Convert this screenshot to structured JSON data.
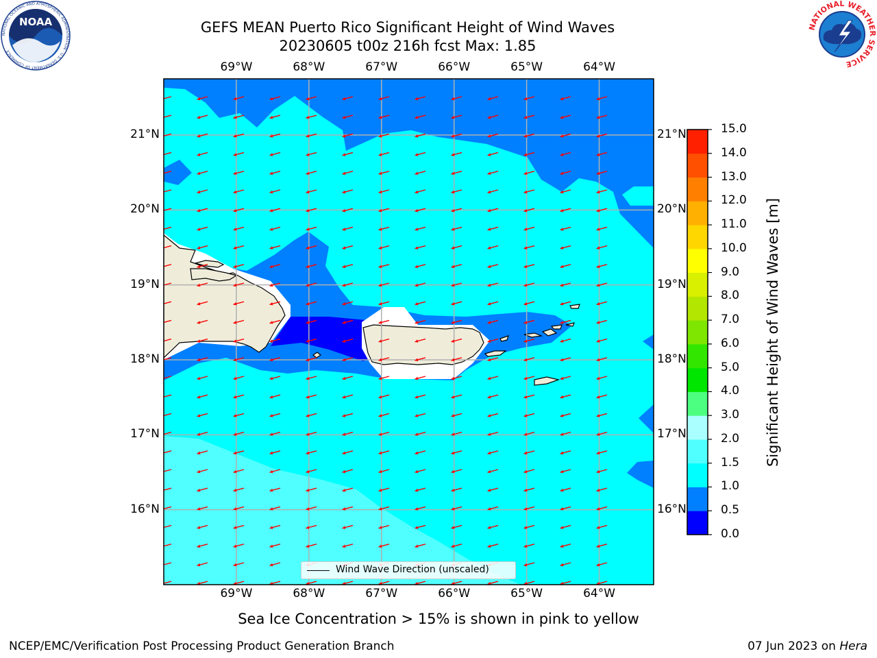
{
  "header": {
    "title_line1": "GEFS MEAN Puerto Rico Significant Height of Wind Waves",
    "title_line2": "20230605 t00z 216h fcst   Max: 1.85"
  },
  "logos": {
    "noaa_text": "NOAA",
    "noaa_ring_text": "NATIONAL OCEANIC AND ATMOSPHERIC ADMINISTRATION · U.S. DEPARTMENT OF COMMERCE",
    "nws_ring_text": "NATIONAL WEATHER SERVICE"
  },
  "map": {
    "lon_labels": [
      "69°W",
      "68°W",
      "67°W",
      "66°W",
      "65°W",
      "64°W"
    ],
    "lat_labels": [
      "21°N",
      "20°N",
      "19°N",
      "18°N",
      "17°N",
      "16°N"
    ],
    "lon_values": [
      -69,
      -68,
      -67,
      -66,
      -65,
      -64
    ],
    "lat_values": [
      21,
      20,
      19,
      18,
      17,
      16
    ],
    "extent": {
      "lon_min": -70.0,
      "lon_max": -63.25,
      "lat_min": 15.0,
      "lat_max": 21.75
    },
    "legend_label": "Wind Wave Direction (unscaled)",
    "vector_direction": "toward west-southwest",
    "colors": {
      "band_0_0_5": "#0000ff",
      "band_0_5_1_0": "#0080ff",
      "band_1_0_1_5": "#00ffff",
      "band_1_5_2_0": "#50ffff",
      "land": "#efedda",
      "arrow": "#ff0000",
      "grid": "#b0b0b0"
    }
  },
  "colorbar": {
    "label": "Significant Height of Wind Waves [m]",
    "ticks": [
      "0.0",
      "0.5",
      "1.0",
      "1.5",
      "2.0",
      "3.0",
      "4.0",
      "5.0",
      "6.0",
      "7.0",
      "8.0",
      "9.0",
      "10.0",
      "11.0",
      "12.0",
      "13.0",
      "14.0",
      "15.0"
    ],
    "colors": [
      "#0000ff",
      "#0080ff",
      "#00ffff",
      "#50ffff",
      "#aaffff",
      "#4dff80",
      "#00e600",
      "#33e600",
      "#7ee600",
      "#b3e600",
      "#d9f000",
      "#ffff00",
      "#ffd700",
      "#ffb000",
      "#ff8000",
      "#ff5000",
      "#ff2000"
    ]
  },
  "notes": {
    "sea_ice": "Sea Ice Concentration > 15% is shown in pink to yellow",
    "footer_left": "NCEP/EMC/Verification Post Processing Product Generation Branch",
    "footer_date": "07 Jun 2023 on ",
    "footer_host": "Hera"
  }
}
